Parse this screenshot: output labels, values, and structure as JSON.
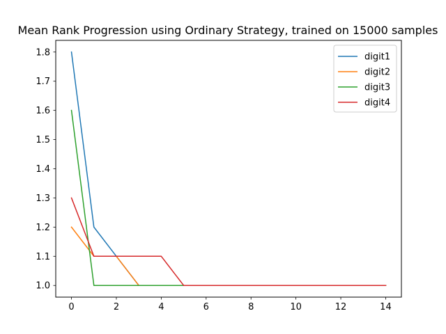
{
  "chart_data": {
    "type": "line",
    "title": "Mean Rank Progression using Ordinary Strategy, trained on 15000 samples",
    "xlabel": "",
    "ylabel": "",
    "xlim": [
      -0.7,
      14.7
    ],
    "ylim": [
      0.96,
      1.84
    ],
    "xticks": [
      0,
      2,
      4,
      6,
      8,
      10,
      12,
      14
    ],
    "yticks": [
      1.0,
      1.1,
      1.2,
      1.3,
      1.4,
      1.5,
      1.6,
      1.7,
      1.8
    ],
    "grid": false,
    "legend_position": "upper-right",
    "x": [
      0,
      1,
      2,
      3,
      4,
      5,
      6,
      7,
      8,
      9,
      10,
      11,
      12,
      13,
      14
    ],
    "series": [
      {
        "name": "digit1",
        "color": "#1f77b4",
        "values": [
          1.8,
          1.2,
          1.1,
          1.0,
          1.0,
          1.0,
          1.0,
          1.0,
          1.0,
          1.0,
          1.0,
          1.0,
          1.0,
          1.0,
          1.0
        ]
      },
      {
        "name": "digit2",
        "color": "#ff7f0e",
        "values": [
          1.2,
          1.1,
          1.1,
          1.0,
          1.0,
          1.0,
          1.0,
          1.0,
          1.0,
          1.0,
          1.0,
          1.0,
          1.0,
          1.0,
          1.0
        ]
      },
      {
        "name": "digit3",
        "color": "#2ca02c",
        "values": [
          1.6,
          1.0,
          1.0,
          1.0,
          1.0,
          1.0,
          1.0,
          1.0,
          1.0,
          1.0,
          1.0,
          1.0,
          1.0,
          1.0,
          1.0
        ]
      },
      {
        "name": "digit4",
        "color": "#d62728",
        "values": [
          1.3,
          1.1,
          1.1,
          1.1,
          1.1,
          1.0,
          1.0,
          1.0,
          1.0,
          1.0,
          1.0,
          1.0,
          1.0,
          1.0,
          1.0
        ]
      }
    ]
  }
}
